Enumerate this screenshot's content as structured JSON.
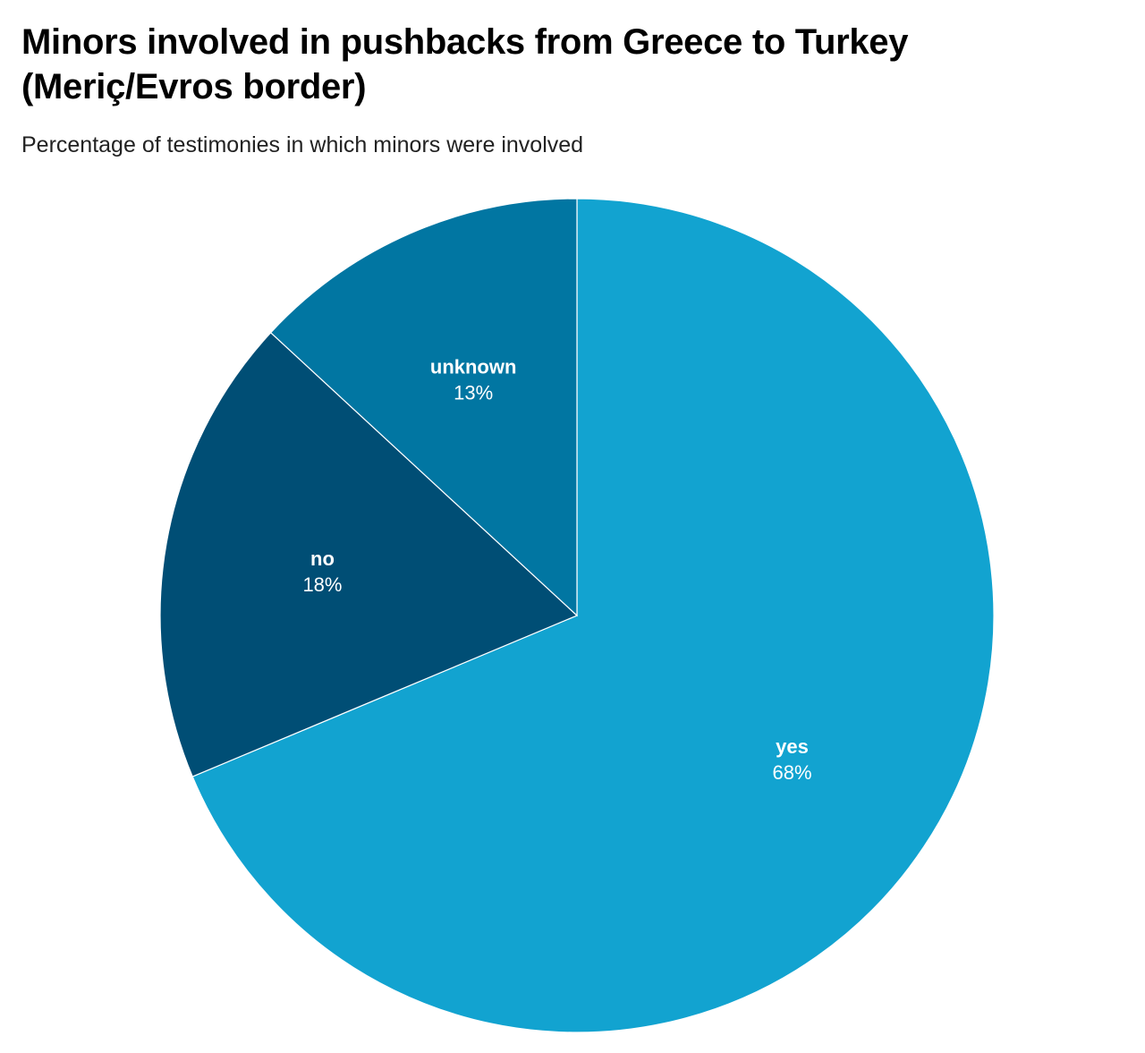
{
  "chart_data": {
    "type": "pie",
    "title": "Minors involved in pushbacks from Greece to Turkey (Meriç/Evros border)",
    "subtitle": "Percentage of testimonies in which minors were involved",
    "slices": [
      {
        "label": "yes",
        "value": 68,
        "value_label": "68%",
        "color": "#12a3d0"
      },
      {
        "label": "no",
        "value": 18,
        "value_label": "18%",
        "color": "#004e75"
      },
      {
        "label": "unknown",
        "value": 13,
        "value_label": "13%",
        "color": "#0176a2"
      }
    ],
    "start_angle": "12 o'clock",
    "direction": "clockwise",
    "legend": "none (labels on slices)"
  }
}
